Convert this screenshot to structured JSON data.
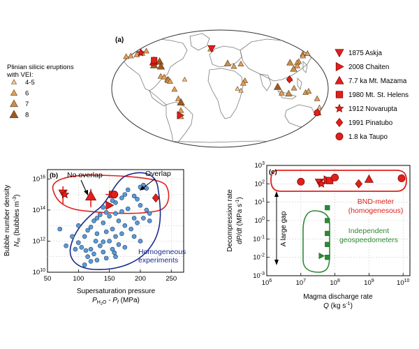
{
  "figure": {
    "panel_a": {
      "label": "(a)",
      "vei_legend": {
        "title_lines": [
          "Plinian silicic eruptions",
          "with VEI:"
        ],
        "items": [
          {
            "label": "4-5",
            "color": "#f3c892",
            "size": 0.6
          },
          {
            "label": "6",
            "color": "#e3a056",
            "size": 0.75
          },
          {
            "label": "7",
            "color": "#c98d4a",
            "size": 0.9
          },
          {
            "label": "8",
            "color": "#9b5a22",
            "size": 1.0
          }
        ]
      },
      "eruption_legend": [
        {
          "label": "1875 Askja",
          "marker": "triangle-down"
        },
        {
          "label": "2008 Chaiten",
          "marker": "triangle-right"
        },
        {
          "label": "7.7 ka Mt. Mazama",
          "marker": "triangle-up"
        },
        {
          "label": "1980 Mt. St. Helens",
          "marker": "square"
        },
        {
          "label": "1912 Novarupta",
          "marker": "star"
        },
        {
          "label": "1991 Pinatubo",
          "marker": "diamond"
        },
        {
          "label": "1.8 ka Taupo",
          "marker": "circle"
        }
      ],
      "map_locations": [
        {
          "lon": -153,
          "lat": 58,
          "vei": 7
        },
        {
          "lon": -146,
          "lat": 61,
          "vei": 6
        },
        {
          "lon": -160,
          "lat": 55,
          "vei": 6
        },
        {
          "lon": -170,
          "lat": 53,
          "vei": 6
        },
        {
          "lon": -178,
          "lat": 52,
          "vei": 6
        },
        {
          "lon": -123,
          "lat": 47,
          "vei": 6
        },
        {
          "lon": -122,
          "lat": 44,
          "vei": 7
        },
        {
          "lon": -121,
          "lat": 41,
          "vei": 6
        },
        {
          "lon": -119,
          "lat": 38,
          "vei": 8
        },
        {
          "lon": -111,
          "lat": 44,
          "vei": 8
        },
        {
          "lon": -106,
          "lat": 36,
          "vei": 8
        },
        {
          "lon": -103,
          "lat": 20,
          "vei": 6
        },
        {
          "lon": -97,
          "lat": 19,
          "vei": 6
        },
        {
          "lon": -91,
          "lat": 15,
          "vei": 6
        },
        {
          "lon": -89,
          "lat": 14,
          "vei": 7
        },
        {
          "lon": -86,
          "lat": 12,
          "vei": 6
        },
        {
          "lon": -61,
          "lat": 15,
          "vei": 4.5
        },
        {
          "lon": -78,
          "lat": -1,
          "vei": 6
        },
        {
          "lon": -72,
          "lat": -16,
          "vei": 6
        },
        {
          "lon": -68,
          "lat": -22,
          "vei": 8
        },
        {
          "lon": -70,
          "lat": -35,
          "vei": 6
        },
        {
          "lon": -72,
          "lat": -45,
          "vei": 6
        },
        {
          "lon": -19,
          "lat": 64,
          "vei": 6
        },
        {
          "lon": 14,
          "lat": 41,
          "vei": 7
        },
        {
          "lon": 25,
          "lat": 36,
          "vei": 6
        },
        {
          "lon": 38,
          "lat": 40,
          "vei": 6
        },
        {
          "lon": 43,
          "lat": 13,
          "vei": 6
        },
        {
          "lon": 36,
          "lat": -3,
          "vei": 4.5
        },
        {
          "lon": 30,
          "lat": 0,
          "vei": 4.5
        },
        {
          "lon": 40,
          "lat": 9,
          "vei": 6
        },
        {
          "lon": 160,
          "lat": 56,
          "vei": 6
        },
        {
          "lon": 158,
          "lat": 53,
          "vei": 6
        },
        {
          "lon": 145,
          "lat": 44,
          "vei": 6
        },
        {
          "lon": 141,
          "lat": 42,
          "vei": 6
        },
        {
          "lon": 139,
          "lat": 37,
          "vei": 6
        },
        {
          "lon": 131,
          "lat": 32,
          "vei": 7
        },
        {
          "lon": 128,
          "lat": 42,
          "vei": 7
        },
        {
          "lon": 121,
          "lat": 16,
          "vei": 6
        },
        {
          "lon": 99,
          "lat": 3,
          "vei": 8
        },
        {
          "lon": 106,
          "lat": -7,
          "vei": 6
        },
        {
          "lon": 118,
          "lat": -8,
          "vei": 7
        },
        {
          "lon": 127,
          "lat": 1,
          "vei": 6
        },
        {
          "lon": 147,
          "lat": -6,
          "vei": 6
        },
        {
          "lon": 152,
          "lat": -4,
          "vei": 6
        },
        {
          "lon": 168,
          "lat": -16,
          "vei": 6
        },
        {
          "lon": 176,
          "lat": -38,
          "vei": 8
        },
        {
          "lon": 176,
          "lat": -30,
          "vei": 4.5
        },
        {
          "lon": 170,
          "lat": 57,
          "vei": 6
        }
      ],
      "map_featured": [
        {
          "name": "Askja",
          "marker": "triangle-down",
          "lon": -17,
          "lat": 65
        },
        {
          "name": "Chaiten",
          "marker": "triangle-right",
          "lon": -73,
          "lat": -43
        },
        {
          "name": "Mazama",
          "marker": "triangle-up",
          "lon": -122,
          "lat": 43
        },
        {
          "name": "St. Helens",
          "marker": "square",
          "lon": -122,
          "lat": 46
        },
        {
          "name": "Novarupta",
          "marker": "star",
          "lon": -155,
          "lat": 58
        },
        {
          "name": "Pinatubo",
          "marker": "diamond",
          "lon": 120,
          "lat": 15
        },
        {
          "name": "Taupo",
          "marker": "circle",
          "lon": 176,
          "lat": -39
        }
      ]
    },
    "panel_b": {
      "label": "(b)",
      "annotations": {
        "no_overlap": "No overlap",
        "overlap": "Overlap",
        "homogeneous_1": "Homogeneous",
        "homogeneous_2": "experiments"
      },
      "y_label_line1": "Bubble number density",
      "y_label_line2": "N",
      "y_label_sub": "m",
      "y_label_unit": " (bubbles m",
      "y_label_unit_sup": "-3",
      "y_label_unit_end": ")",
      "x_label_line1": "Supersaturation pressure",
      "x_label_p": "P",
      "x_label_sub1": "H",
      "x_label_sub2": "2",
      "x_label_sub3": "O",
      "x_label_mid": " - P",
      "x_label_sub4": "f",
      "x_label_unit": " (MPa)",
      "x_ticks": [
        "50",
        "100",
        "150",
        "200",
        "250"
      ],
      "y_ticks": [
        {
          "base": "10",
          "exp": "10"
        },
        {
          "base": "10",
          "exp": "12"
        },
        {
          "base": "10",
          "exp": "14"
        },
        {
          "base": "10",
          "exp": "16"
        }
      ]
    },
    "panel_c": {
      "label": "(c)",
      "annotations": {
        "bnd_1": "BND-meter",
        "bnd_2": "(homogenesous)",
        "indep_1": "Independent",
        "indep_2": "geospeedometers",
        "gap": "A large gap"
      },
      "y_label_line1": "Decompression rate",
      "y_label_line2": "dP/dt",
      "y_label_unit": " (MPa s",
      "y_label_unit_sup": "-1",
      "y_label_unit_end": ")",
      "x_label_line1": "Magma discharge rate",
      "x_label_q": "Q",
      "x_label_unit": " (kg s",
      "x_label_unit_sup": "-1",
      "x_label_unit_end": ")",
      "x_ticks": [
        {
          "base": "10",
          "exp": "6"
        },
        {
          "base": "10",
          "exp": "7"
        },
        {
          "base": "10",
          "exp": "8"
        },
        {
          "base": "10",
          "exp": "9"
        },
        {
          "base": "10",
          "exp": "10"
        }
      ],
      "y_ticks": [
        {
          "base": "10",
          "exp": "-3"
        },
        {
          "base": "10",
          "exp": "-2"
        },
        {
          "base": "10",
          "exp": "-1"
        },
        {
          "base": "10",
          "exp": "0"
        },
        {
          "base": "10",
          "exp": "1"
        },
        {
          "base": "10",
          "exp": "2"
        },
        {
          "base": "10",
          "exp": "3"
        }
      ]
    },
    "colors": {
      "red": "#e0201b",
      "navy": "#1c2a8a",
      "blue_fill": "#5b9bd5",
      "green": "#2d8a34",
      "green_dark": "#1f6a26",
      "land": "#ffffff",
      "coast": "#7a7a7a"
    }
  },
  "chart_data": [
    {
      "type": "scatter",
      "panel": "b",
      "xlabel": "Supersaturation pressure P_H2O - P_f (MPa)",
      "ylabel": "Bubble number density N_m (bubbles m^-3)",
      "xlim": [
        50,
        270
      ],
      "ylim": [
        10000000000.0,
        1e+16
      ],
      "yscale": "log",
      "series": [
        {
          "name": "Homogeneous experiments",
          "points": [
            [
              180,
              2000000000000000.0
            ],
            [
              200,
              3000000000000000.0
            ],
            [
              205,
              4000000000000000.0
            ],
            [
              210,
              2500000000000000.0
            ],
            [
              190,
              800000000000000.0
            ],
            [
              170,
              600000000000000.0
            ],
            [
              175,
              1000000000000000.0
            ],
            [
              195,
              500000000000000.0
            ],
            [
              160,
              300000000000000.0
            ],
            [
              150,
              200000000000000.0
            ],
            [
              155,
              400000000000000.0
            ],
            [
              140,
              150000000000000.0
            ],
            [
              145,
              70000000000000.0
            ],
            [
              135,
              50000000000000.0
            ],
            [
              130,
              30000000000000.0
            ],
            [
              125,
              20000000000000.0
            ],
            [
              150,
              40000000000000.0
            ],
            [
              160,
              60000000000000.0
            ],
            [
              170,
              80000000000000.0
            ],
            [
              180,
              120000000000000.0
            ],
            [
              200,
              200000000000000.0
            ],
            [
              210,
              100000000000000.0
            ],
            [
              190,
              30000000000000.0
            ],
            [
              165,
              20000000000000.0
            ],
            [
              140,
              15000000000000.0
            ],
            [
              120,
              8000000000000.0
            ],
            [
              115,
              5000000000000.0
            ],
            [
              110,
              2000000000000.0
            ],
            [
              130,
              3000000000000.0
            ],
            [
              145,
              4000000000000.0
            ],
            [
              155,
              6000000000000.0
            ],
            [
              175,
              10000000000000.0
            ],
            [
              185,
              6000000000000.0
            ],
            [
              195,
              15000000000000.0
            ],
            [
              205,
              30000000000000.0
            ],
            [
              215,
              60000000000000.0
            ],
            [
              100,
              800000000000.0
            ],
            [
              105,
              400000000000.0
            ],
            [
              120,
              300000000000.0
            ],
            [
              135,
              500000000000.0
            ],
            [
              150,
              1000000000000.0
            ],
            [
              160,
              2000000000000.0
            ],
            [
              170,
              3000000000000.0
            ],
            [
              140,
              200000000000.0
            ],
            [
              125,
              150000000000.0
            ],
            [
              115,
              100000000000.0
            ],
            [
              130,
              60000000000.0
            ],
            [
              145,
              80000000000.0
            ],
            [
              110,
              30000000000.0
            ],
            [
              120,
              50000000000.0
            ],
            [
              160,
              100000000000.0
            ],
            [
              175,
              400000000000.0
            ],
            [
              90,
              2000000000000.0
            ],
            [
              80,
              500000000000.0
            ],
            [
              100,
              10000000000000.0
            ],
            [
              155,
              300000000000.0
            ],
            [
              165,
              600000000000.0
            ],
            [
              200,
              1000000000000.0
            ],
            [
              215,
              20000000000000.0
            ],
            [
              190,
              2000000000000.0
            ],
            [
              128,
              1000000000000.0
            ],
            [
              140,
              900000000000.0
            ],
            [
              158,
              180000000000.0
            ],
            [
              112,
              250000000000.0
            ],
            [
              70,
              6000000000000.0
            ],
            [
              95,
              300000000000.0
            ]
          ]
        },
        {
          "name": "Natural eruptions",
          "points": [
            {
              "eruption": "Askja",
              "x": 75,
              "y": 1200000000000000.0
            },
            {
              "eruption": "Novarupta",
              "x": 78,
              "y": 1000000000000000.0
            },
            {
              "eruption": "Mazama",
              "x": 120,
              "y": 800000000000000.0
            },
            {
              "eruption": "Chaiten",
              "x": 150,
              "y": 200000000000000.0
            },
            {
              "eruption": "St. Helens",
              "x": 155,
              "y": 1000000000000000.0
            },
            {
              "eruption": "Pinatubo",
              "x": 225,
              "y": 600000000000000.0
            },
            {
              "eruption": "Taupo",
              "x": 158,
              "y": 1000000000000000.0
            }
          ]
        }
      ]
    },
    {
      "type": "scatter",
      "panel": "c",
      "xlabel": "Magma discharge rate Q (kg s^-1)",
      "ylabel": "Decompression rate dP/dt (MPa s^-1)",
      "xlim": [
        1000000.0,
        10000000000.0
      ],
      "ylim": [
        0.001,
        1000.0
      ],
      "xscale": "log",
      "yscale": "log",
      "series": [
        {
          "name": "BND-meter (homogenesous)",
          "points": [
            {
              "eruption": "Taupo",
              "x": 10000000.0,
              "y": 130
            },
            {
              "eruption": "Askja",
              "x": 35000000.0,
              "y": 120
            },
            {
              "eruption": "Novarupta",
              "x": 40000000.0,
              "y": 100
            },
            {
              "eruption": "Chaiten",
              "x": 60000000.0,
              "y": 160
            },
            {
              "eruption": "St. Helens",
              "x": 70000000.0,
              "y": 150
            },
            {
              "eruption": "Taupo",
              "x": 100000000.0,
              "y": 220
            },
            {
              "eruption": "Pinatubo",
              "x": 500000000.0,
              "y": 100
            },
            {
              "eruption": "Mazama",
              "x": 1000000000.0,
              "y": 180
            },
            {
              "eruption": "Taupo",
              "x": 9000000000.0,
              "y": 200
            }
          ]
        },
        {
          "name": "Independent geospeedometers",
          "points": [
            {
              "eruption": "St. Helens",
              "x": 60000000.0,
              "y": 5
            },
            {
              "eruption": "St. Helens",
              "x": 60000000.0,
              "y": 1
            },
            {
              "eruption": "St. Helens",
              "x": 60000000.0,
              "y": 0.2
            },
            {
              "eruption": "St. Helens",
              "x": 60000000.0,
              "y": 0.05
            },
            {
              "eruption": "St. Helens",
              "x": 60000000.0,
              "y": 0.01
            },
            {
              "eruption": "Chaiten",
              "x": 40000000.0,
              "y": 0.012
            }
          ]
        }
      ]
    }
  ]
}
